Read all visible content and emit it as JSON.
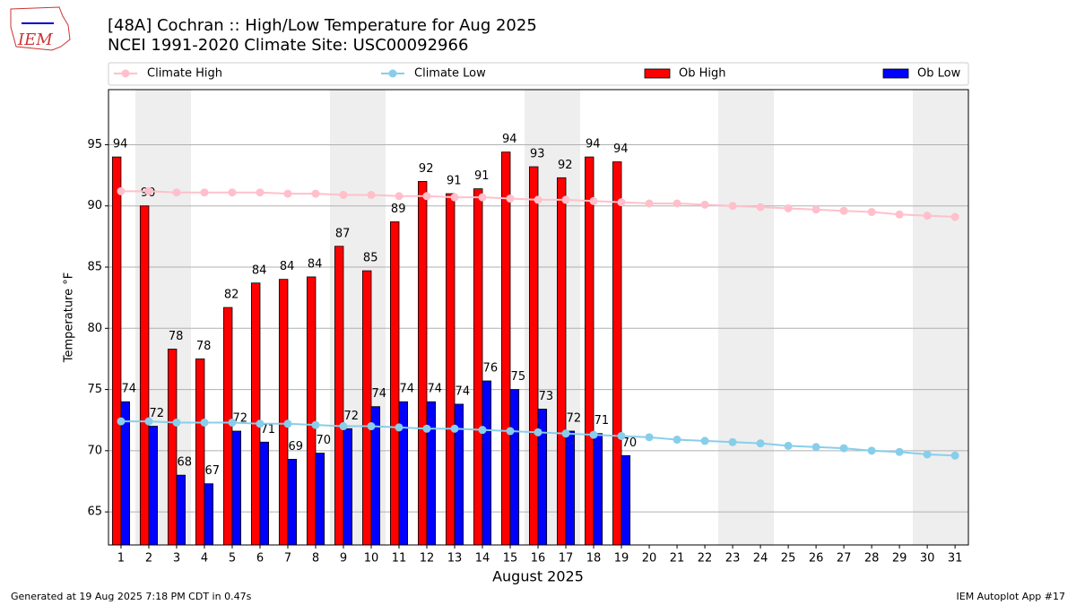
{
  "logo_text": "IEM",
  "chart_data": {
    "type": "bar",
    "title": "[48A] Cochran :: High/Low Temperature for Aug 2025",
    "subtitle": "NCEI 1991-2020 Climate Site: USC00092966",
    "xlabel": "August 2025",
    "ylabel": "Temperature °F",
    "x": [
      1,
      2,
      3,
      4,
      5,
      6,
      7,
      8,
      9,
      10,
      11,
      12,
      13,
      14,
      15,
      16,
      17,
      18,
      19,
      20,
      21,
      22,
      23,
      24,
      25,
      26,
      27,
      28,
      29,
      30,
      31
    ],
    "xlim": [
      0.55,
      31.48
    ],
    "xticks": [
      1,
      2,
      3,
      4,
      5,
      6,
      7,
      8,
      9,
      10,
      11,
      12,
      13,
      14,
      15,
      16,
      17,
      18,
      19,
      20,
      21,
      22,
      23,
      24,
      25,
      26,
      27,
      28,
      29,
      30,
      31
    ],
    "ylim": [
      62.3,
      99.5
    ],
    "yticks": [
      65,
      70,
      75,
      80,
      85,
      90,
      95
    ],
    "grid": true,
    "series": [
      {
        "name": "Climate High",
        "type": "line",
        "color": "#ffc0cb",
        "values": [
          91.2,
          91.2,
          91.1,
          91.1,
          91.1,
          91.1,
          91.0,
          91.0,
          90.9,
          90.9,
          90.8,
          90.8,
          90.7,
          90.7,
          90.6,
          90.5,
          90.5,
          90.4,
          90.3,
          90.2,
          90.2,
          90.1,
          90.0,
          89.9,
          89.8,
          89.7,
          89.6,
          89.5,
          89.3,
          89.2,
          89.1
        ]
      },
      {
        "name": "Climate Low",
        "type": "line",
        "color": "#87ceeb",
        "values": [
          72.4,
          72.4,
          72.3,
          72.3,
          72.3,
          72.2,
          72.2,
          72.1,
          72.0,
          72.0,
          71.9,
          71.8,
          71.8,
          71.7,
          71.6,
          71.5,
          71.4,
          71.3,
          71.2,
          71.1,
          70.9,
          70.8,
          70.7,
          70.6,
          70.4,
          70.3,
          70.2,
          70.0,
          69.9,
          69.7,
          69.6
        ]
      },
      {
        "name": "Ob High",
        "type": "bar",
        "color": "#ff0000",
        "values": [
          94,
          90,
          78.3,
          77.5,
          81.7,
          83.7,
          84,
          84.2,
          86.7,
          84.7,
          88.7,
          92,
          91,
          91.4,
          94.4,
          93.2,
          92.3,
          94,
          93.6,
          null,
          null,
          null,
          null,
          null,
          null,
          null,
          null,
          null,
          null,
          null,
          null
        ],
        "value_labels": [
          "94",
          "90",
          "78",
          "78",
          "82",
          "84",
          "84",
          "84",
          "87",
          "85",
          "89",
          "92",
          "91",
          "91",
          "94",
          "93",
          "92",
          "94",
          "94",
          null,
          null,
          null,
          null,
          null,
          null,
          null,
          null,
          null,
          null,
          null,
          null
        ]
      },
      {
        "name": "Ob Low",
        "type": "bar",
        "color": "#0000ff",
        "values": [
          74,
          72,
          68,
          67.3,
          71.6,
          70.7,
          69.3,
          69.8,
          71.8,
          73.6,
          74,
          74,
          73.8,
          75.7,
          75,
          73.4,
          71.6,
          71.4,
          69.6,
          null,
          null,
          null,
          null,
          null,
          null,
          null,
          null,
          null,
          null,
          null,
          null
        ],
        "value_labels": [
          "74",
          "72",
          "68",
          "67",
          "72",
          "71",
          "69",
          "70",
          "72",
          "74",
          "74",
          "74",
          "74",
          "76",
          "75",
          "73",
          "72",
          "71",
          "70",
          null,
          null,
          null,
          null,
          null,
          null,
          null,
          null,
          null,
          null,
          null,
          null
        ]
      }
    ],
    "footer_left": "Generated at 19 Aug 2025 7:18 PM CDT in 0.47s",
    "footer_right": "IEM Autoplot App #17"
  }
}
